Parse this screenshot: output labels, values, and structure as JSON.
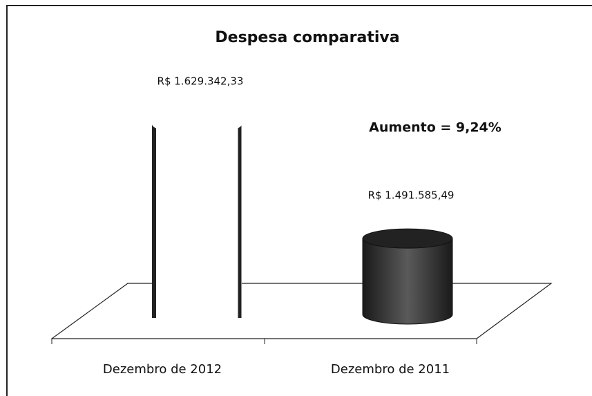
{
  "chart_data": {
    "type": "bar3d",
    "title": "Despesa comparativa",
    "categories": [
      "Dezembro de 2012",
      "Dezembro de 2011"
    ],
    "values": [
      1629342.33,
      1491585.49
    ],
    "value_labels": [
      "R$ 1.629.342,33",
      "R$ 1.491.585,49"
    ],
    "colors": [
      "#ffffff",
      "#3a3a3a"
    ],
    "annotation": "Aumento = 9,24%",
    "ylim": [
      1400000,
      1650000
    ]
  }
}
